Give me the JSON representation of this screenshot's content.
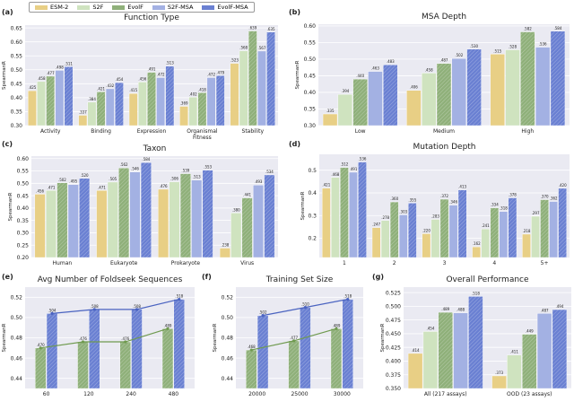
{
  "legend": [
    {
      "name": "ESM-2",
      "color": "#e8cf85"
    },
    {
      "name": "S2F",
      "color": "#cfe3bf"
    },
    {
      "name": "EvolF",
      "color": "#8fb07a"
    },
    {
      "name": "S2F-MSA",
      "color": "#a3b1e3"
    },
    {
      "name": "EvolF-MSA",
      "color": "#6a80d2"
    }
  ],
  "chart_data": [
    {
      "panel": "(a)",
      "type": "bar",
      "title": "Function Type",
      "ylabel": "SpearmanR",
      "ylim": [
        0.3,
        0.66
      ],
      "yticks": [
        "0.30",
        "0.35",
        "0.40",
        "0.45",
        "0.50",
        "0.55",
        "0.60",
        "0.65"
      ],
      "categories": [
        "Activity",
        "Binding",
        "Expression",
        "Organismal\nFitness",
        "Stability"
      ],
      "series": [
        {
          "name": "ESM-2",
          "values": [
            0.425,
            0.337,
            0.415,
            0.369,
            0.523
          ]
        },
        {
          "name": "S2F",
          "values": [
            0.458,
            0.384,
            0.456,
            0.402,
            0.568
          ]
        },
        {
          "name": "EvolF",
          "values": [
            0.477,
            0.421,
            0.491,
            0.418,
            0.639
          ]
        },
        {
          "name": "S2F-MSA",
          "values": [
            0.498,
            0.432,
            0.472,
            0.472,
            0.567
          ]
        },
        {
          "name": "EvolF-MSA",
          "values": [
            0.511,
            0.454,
            0.513,
            0.479,
            0.635
          ]
        }
      ]
    },
    {
      "panel": "(b)",
      "type": "bar",
      "title": "MSA Depth",
      "ylabel": "SpearmanR",
      "ylim": [
        0.3,
        0.605
      ],
      "yticks": [
        "0.30",
        "0.35",
        "0.40",
        "0.45",
        "0.50",
        "0.55",
        "0.60"
      ],
      "categories": [
        "Low",
        "Medium",
        "High"
      ],
      "series": [
        {
          "name": "ESM-2",
          "values": [
            0.335,
            0.406,
            0.515
          ]
        },
        {
          "name": "S2F",
          "values": [
            0.394,
            0.458,
            0.528
          ]
        },
        {
          "name": "EvolF",
          "values": [
            0.44,
            0.487,
            0.582
          ]
        },
        {
          "name": "S2F-MSA",
          "values": [
            0.463,
            0.502,
            0.536
          ]
        },
        {
          "name": "EvolF-MSA",
          "values": [
            0.483,
            0.53,
            0.584
          ]
        }
      ]
    },
    {
      "panel": "(c)",
      "type": "bar",
      "title": "Taxon",
      "ylabel": "SpearmanR",
      "ylim": [
        0.2,
        0.61
      ],
      "yticks": [
        "0.20",
        "0.25",
        "0.30",
        "0.35",
        "0.40",
        "0.45",
        "0.50",
        "0.55",
        "0.60"
      ],
      "categories": [
        "Human",
        "Eukaryote",
        "Prokaryote",
        "Virus"
      ],
      "series": [
        {
          "name": "ESM-2",
          "values": [
            0.456,
            0.471,
            0.476,
            0.238
          ]
        },
        {
          "name": "S2F",
          "values": [
            0.471,
            0.505,
            0.506,
            0.38
          ]
        },
        {
          "name": "EvolF",
          "values": [
            0.502,
            0.562,
            0.539,
            0.441
          ]
        },
        {
          "name": "S2F-MSA",
          "values": [
            0.495,
            0.546,
            0.513,
            0.493
          ]
        },
        {
          "name": "EvolF-MSA",
          "values": [
            0.52,
            0.584,
            0.553,
            0.534
          ]
        }
      ]
    },
    {
      "panel": "(d)",
      "type": "bar",
      "title": "Mutation Depth",
      "ylabel": "SpearmanR",
      "ylim": [
        0.115,
        0.57
      ],
      "yticks": [
        "0.2",
        "0.3",
        "0.4",
        "0.5"
      ],
      "categories": [
        "1",
        "2",
        "3",
        "4",
        "5+"
      ],
      "series": [
        {
          "name": "ESM-2",
          "values": [
            0.421,
            0.247,
            0.22,
            0.162,
            0.218
          ]
        },
        {
          "name": "S2F",
          "values": [
            0.468,
            0.278,
            0.283,
            0.241,
            0.297
          ]
        },
        {
          "name": "EvolF",
          "values": [
            0.512,
            0.36,
            0.372,
            0.334,
            0.37
          ]
        },
        {
          "name": "S2F-MSA",
          "values": [
            0.491,
            0.303,
            0.346,
            0.318,
            0.362
          ]
        },
        {
          "name": "EvolF-MSA",
          "values": [
            0.536,
            0.355,
            0.413,
            0.378,
            0.42
          ]
        }
      ]
    },
    {
      "panel": "(e)",
      "type": "bar",
      "title": "Avg Number of Foldseek Sequences",
      "ylabel": "SpearmanR",
      "ylim": [
        0.43,
        0.53
      ],
      "yticks": [
        "0.44",
        "0.46",
        "0.48",
        "0.50",
        "0.52"
      ],
      "categories": [
        "60",
        "120",
        "240",
        "480"
      ],
      "lines": true,
      "series": [
        {
          "name": "EvolF",
          "values": [
            0.47,
            0.476,
            0.476,
            0.489
          ]
        },
        {
          "name": "EvolF-MSA",
          "values": [
            0.504,
            0.508,
            0.508,
            0.518
          ]
        }
      ]
    },
    {
      "panel": "(f)",
      "type": "bar",
      "title": "Training Set Size",
      "ylabel": "SpearmanR",
      "ylim": [
        0.43,
        0.53
      ],
      "yticks": [
        "0.44",
        "0.46",
        "0.48",
        "0.50",
        "0.52"
      ],
      "categories": [
        "20000",
        "25000",
        "30000"
      ],
      "lines": true,
      "series": [
        {
          "name": "EvolF",
          "values": [
            0.468,
            0.477,
            0.489
          ]
        },
        {
          "name": "EvolF-MSA",
          "values": [
            0.502,
            0.51,
            0.518
          ]
        }
      ]
    },
    {
      "panel": "(g)",
      "type": "bar",
      "title": "Overall Performance",
      "ylabel": "SpearmanR",
      "ylim": [
        0.35,
        0.535
      ],
      "yticks": [
        "0.350",
        "0.375",
        "0.400",
        "0.425",
        "0.450",
        "0.475",
        "0.500",
        "0.525"
      ],
      "categories": [
        "All (217 assays)",
        "OOD (23 assays)"
      ],
      "series": [
        {
          "name": "ESM-2",
          "values": [
            0.414,
            0.373
          ]
        },
        {
          "name": "S2F",
          "values": [
            0.454,
            0.411
          ]
        },
        {
          "name": "EvolF",
          "values": [
            0.489,
            0.449
          ]
        },
        {
          "name": "S2F-MSA",
          "values": [
            0.488,
            0.487
          ]
        },
        {
          "name": "EvolF-MSA",
          "values": [
            0.518,
            0.494
          ]
        }
      ]
    }
  ]
}
